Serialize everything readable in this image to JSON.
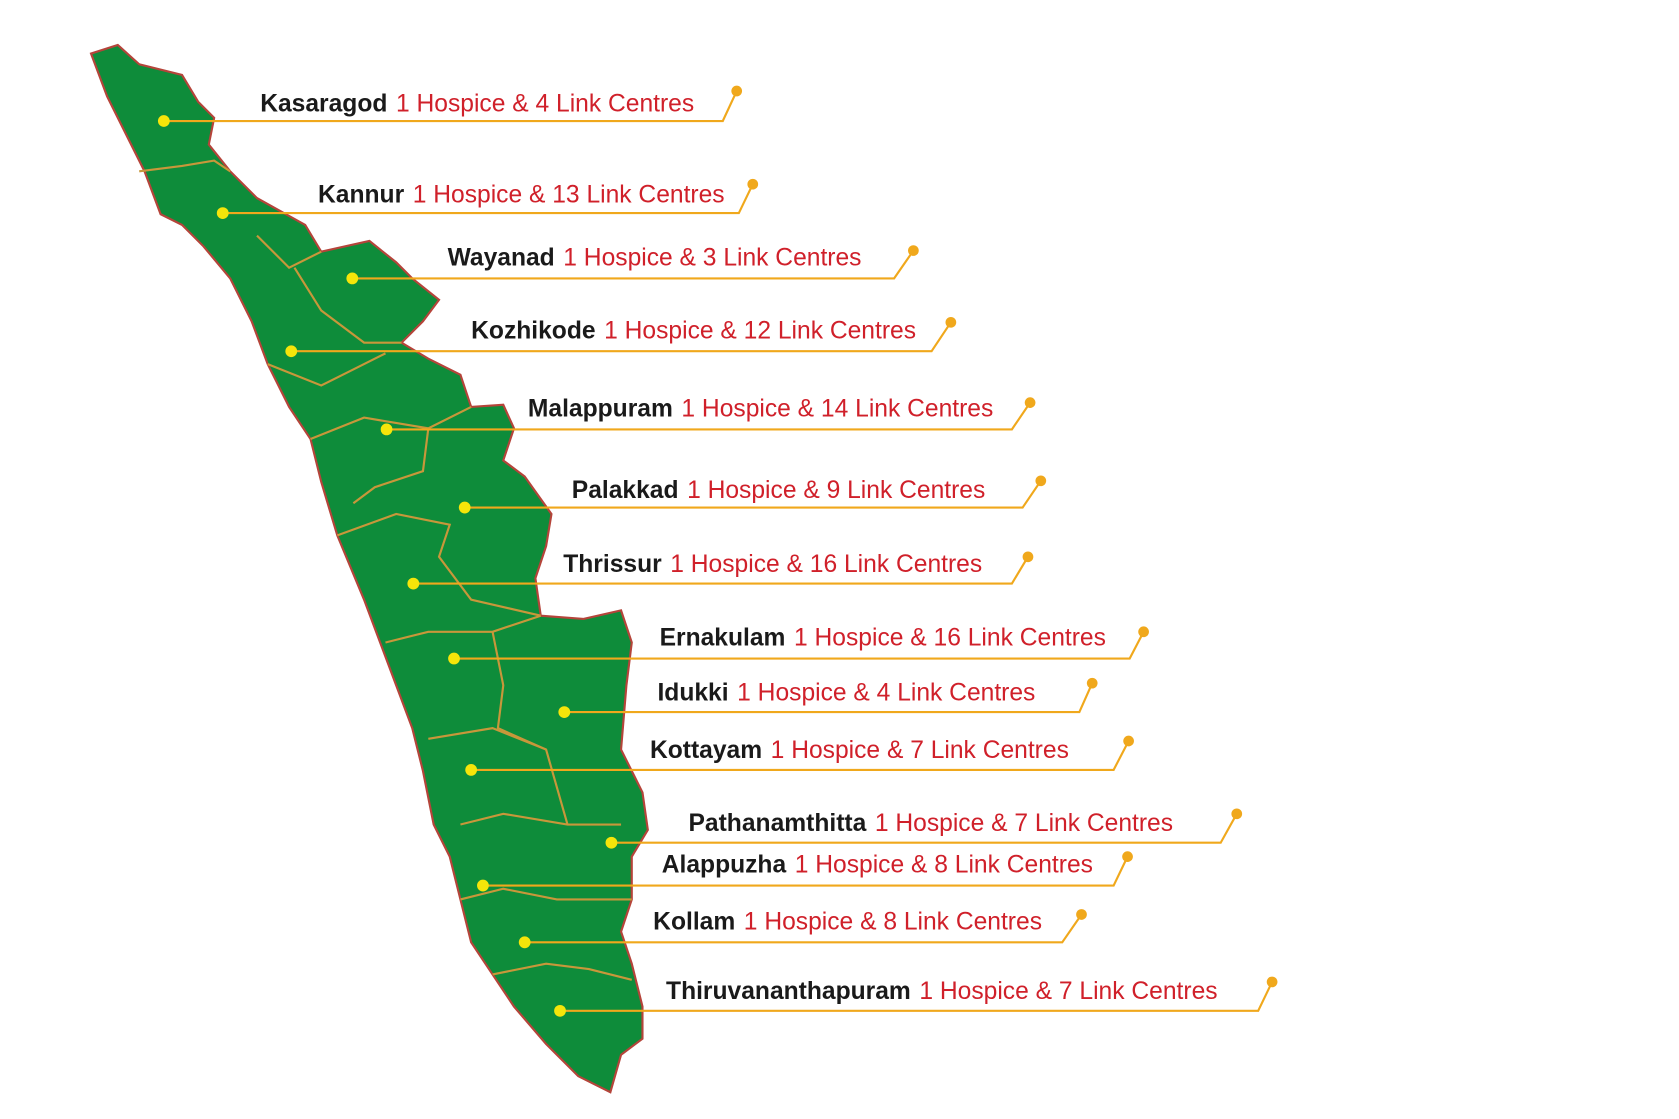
{
  "districts": [
    {
      "name": "Kasaragod",
      "centres": "1 Hospice & 4 Link Centres"
    },
    {
      "name": "Kannur",
      "centres": "1 Hospice & 13 Link Centres"
    },
    {
      "name": "Wayanad",
      "centres": "1 Hospice & 3 Link Centres"
    },
    {
      "name": "Kozhikode",
      "centres": "1 Hospice & 12 Link Centres"
    },
    {
      "name": "Malappuram",
      "centres": "1 Hospice & 14 Link Centres"
    },
    {
      "name": "Palakkad",
      "centres": "1 Hospice & 9 Link Centres"
    },
    {
      "name": "Thrissur",
      "centres": "1 Hospice & 16 Link Centres"
    },
    {
      "name": "Ernakulam",
      "centres": "1 Hospice & 16 Link Centres"
    },
    {
      "name": "Idukki",
      "centres": "1 Hospice & 4 Link Centres"
    },
    {
      "name": "Kottayam",
      "centres": "1 Hospice & 7 Link Centres"
    },
    {
      "name": "Pathanamthitta",
      "centres": "1 Hospice & 7 Link Centres"
    },
    {
      "name": "Alappuzha",
      "centres": "1 Hospice & 8 Link Centres"
    },
    {
      "name": "Kollam",
      "centres": "1 Hospice & 8 Link Centres"
    },
    {
      "name": "Thiruvananthapuram",
      "centres": "1 Hospice & 7 Link Centres"
    }
  ]
}
